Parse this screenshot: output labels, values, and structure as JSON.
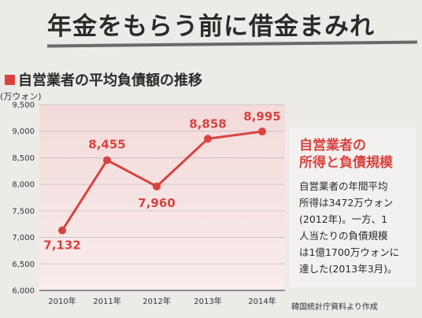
{
  "headline": "年金をもらう前に借金まみれ",
  "chart_data": {
    "type": "line",
    "title": "自営業者の平均負債額の推移",
    "ylabel": "(万ウォン)",
    "categories": [
      "2010年",
      "2011年",
      "2012年",
      "2013年",
      "2014年"
    ],
    "values": [
      7132,
      8455,
      7960,
      8858,
      8995
    ],
    "data_labels": [
      "7,132",
      "8,455",
      "7,960",
      "8,858",
      "8,995"
    ],
    "yticks": [
      6000,
      6500,
      7000,
      7500,
      8000,
      8500,
      9000,
      9500
    ],
    "ytick_labels": [
      "6,000",
      "6,500",
      "7,000",
      "7,500",
      "8,000",
      "8,500",
      "9,000",
      "9,500"
    ],
    "ylim": [
      6000,
      9500
    ],
    "grid": true,
    "line_color": "#d8433f",
    "plot_background": "#f6dede"
  },
  "infobox": {
    "title_line1": "自営業者の",
    "title_line2": "所得と負債規模",
    "body_lines": [
      "自営業者の年間平均",
      "所得は3472万ウォン",
      "(2012年)。一方、1",
      "人当たりの負債規模",
      "は1億1700万ウォンに",
      "達した(2013年3月)。"
    ]
  },
  "source": "韓国統計庁資料より作成"
}
